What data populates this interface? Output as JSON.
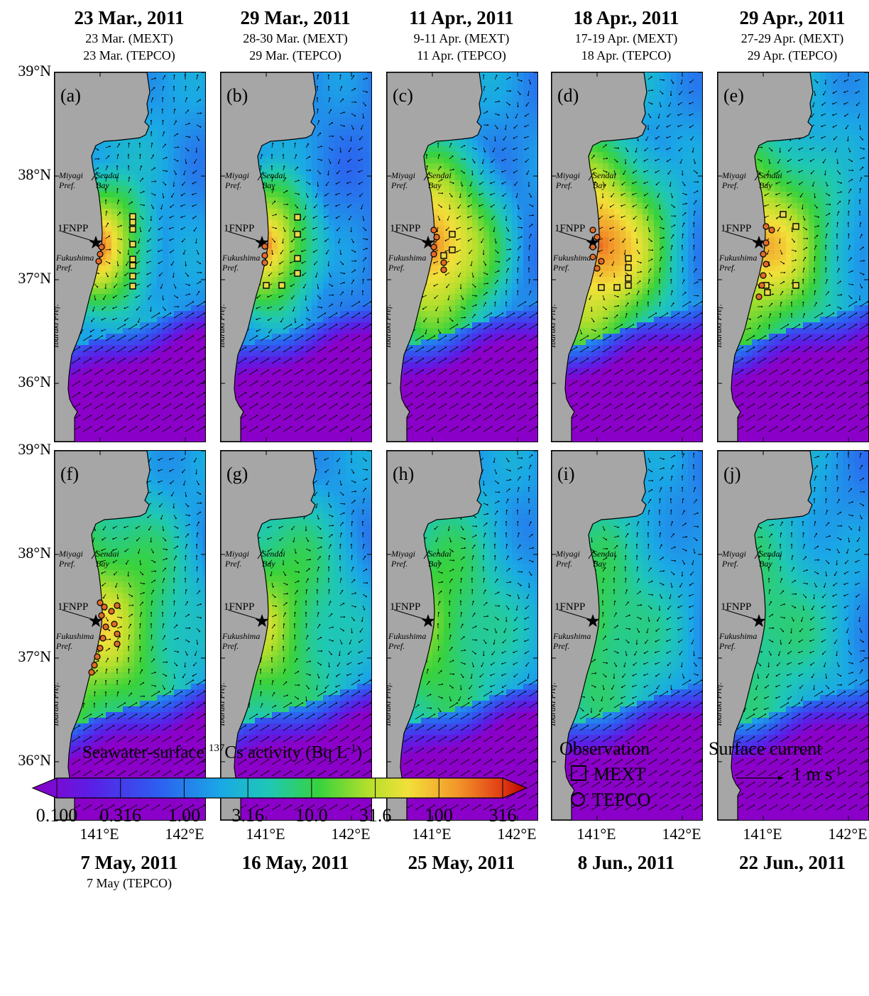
{
  "top_row": [
    {
      "label": "(a)",
      "title": "23 Mar., 2011",
      "sub1": "23 Mar. (MEXT)",
      "sub2": "23 Mar. (TEPCO)"
    },
    {
      "label": "(b)",
      "title": "29 Mar., 2011",
      "sub1": "28-30 Mar. (MEXT)",
      "sub2": "29 Mar. (TEPCO)"
    },
    {
      "label": "(c)",
      "title": "11 Apr., 2011",
      "sub1": "9-11 Apr. (MEXT)",
      "sub2": "11 Apr. (TEPCO)"
    },
    {
      "label": "(d)",
      "title": "18 Apr., 2011",
      "sub1": "17-19 Apr. (MEXT)",
      "sub2": "18 Apr. (TEPCO)"
    },
    {
      "label": "(e)",
      "title": "29 Apr., 2011",
      "sub1": "27-29 Apr. (MEXT)",
      "sub2": "29 Apr. (TEPCO)"
    }
  ],
  "bottom_row": [
    {
      "label": "(f)",
      "title": "7 May, 2011",
      "sub1": "7 May (TEPCO)"
    },
    {
      "label": "(g)",
      "title": "16 May, 2011",
      "sub1": ""
    },
    {
      "label": "(h)",
      "title": "25 May, 2011",
      "sub1": ""
    },
    {
      "label": "(i)",
      "title": "8 Jun., 2011",
      "sub1": ""
    },
    {
      "label": "(j)",
      "title": "22 Jun., 2011",
      "sub1": ""
    }
  ],
  "y_axis": [
    "39°N",
    "38°N",
    "37°N",
    "36°N"
  ],
  "x_axis": [
    "141°E",
    "142°E"
  ],
  "places": {
    "miyagi": "Miyagi\nPref.",
    "sendai": "Sendai\nBay",
    "fukushima": "Fukushima\nPref.",
    "ibaraki": "Ibaraki Pref.",
    "plant": "1FNPP"
  },
  "colorbar": {
    "title_pre": "Seawater-surface ",
    "title_sup": "137",
    "title_mid": "Cs activity (Bq L",
    "title_sup2": "-1",
    "title_post": ")",
    "ticks": [
      "0.100",
      "0.316",
      "1.00",
      "3.16",
      "10.0",
      "31.6",
      "100",
      "316"
    ],
    "scale": "log"
  },
  "legend": {
    "observation_title": "Observation",
    "mext": "MEXT",
    "tepco": "TEPCO",
    "current_title": "Surface current",
    "current_value": "1 m s",
    "current_sup": "-1"
  }
}
